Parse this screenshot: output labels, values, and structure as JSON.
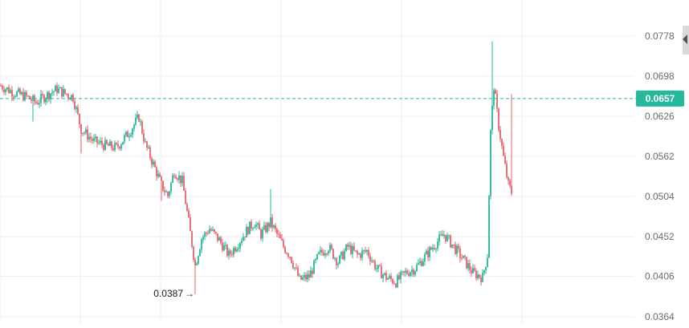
{
  "chart_data": {
    "type": "candlestick",
    "y_ticks": [
      "0.0778",
      "0.0698",
      "0.0626",
      "0.0562",
      "0.0504",
      "0.0452",
      "0.0406",
      "0.0364"
    ],
    "y_scale": "log",
    "grid": true,
    "current_price": "0.0657",
    "current_price_value": 0.0657,
    "min_label": "0.0387",
    "min_value": 0.0387,
    "colors": {
      "up": "#26b89a",
      "down": "#e4636b",
      "badge": "#26b89a",
      "grid": "#efefef"
    },
    "series_points": [
      {
        "i": 0,
        "v": 0.068
      },
      {
        "i": 8,
        "v": 0.0668
      },
      {
        "i": 16,
        "v": 0.066
      },
      {
        "i": 22,
        "v": 0.065
      },
      {
        "i": 28,
        "v": 0.0662
      },
      {
        "i": 35,
        "v": 0.0674
      },
      {
        "i": 40,
        "v": 0.0666
      },
      {
        "i": 45,
        "v": 0.066
      },
      {
        "i": 50,
        "v": 0.0605
      },
      {
        "i": 58,
        "v": 0.0585
      },
      {
        "i": 66,
        "v": 0.0578
      },
      {
        "i": 72,
        "v": 0.0575
      },
      {
        "i": 80,
        "v": 0.06
      },
      {
        "i": 86,
        "v": 0.0625
      },
      {
        "i": 90,
        "v": 0.058
      },
      {
        "i": 95,
        "v": 0.055
      },
      {
        "i": 100,
        "v": 0.052
      },
      {
        "i": 104,
        "v": 0.0505
      },
      {
        "i": 108,
        "v": 0.054
      },
      {
        "i": 113,
        "v": 0.0525
      },
      {
        "i": 117,
        "v": 0.047
      },
      {
        "i": 121,
        "v": 0.0418
      },
      {
        "i": 125,
        "v": 0.045
      },
      {
        "i": 130,
        "v": 0.0462
      },
      {
        "i": 136,
        "v": 0.0448
      },
      {
        "i": 142,
        "v": 0.043
      },
      {
        "i": 148,
        "v": 0.0445
      },
      {
        "i": 154,
        "v": 0.0462
      },
      {
        "i": 158,
        "v": 0.047
      },
      {
        "i": 162,
        "v": 0.0455
      },
      {
        "i": 168,
        "v": 0.047
      },
      {
        "i": 172,
        "v": 0.0455
      },
      {
        "i": 176,
        "v": 0.044
      },
      {
        "i": 180,
        "v": 0.043
      },
      {
        "i": 186,
        "v": 0.0402
      },
      {
        "i": 192,
        "v": 0.0406
      },
      {
        "i": 198,
        "v": 0.043
      },
      {
        "i": 204,
        "v": 0.044
      },
      {
        "i": 210,
        "v": 0.0422
      },
      {
        "i": 216,
        "v": 0.044
      },
      {
        "i": 222,
        "v": 0.043
      },
      {
        "i": 228,
        "v": 0.0435
      },
      {
        "i": 234,
        "v": 0.0415
      },
      {
        "i": 240,
        "v": 0.0405
      },
      {
        "i": 246,
        "v": 0.04
      },
      {
        "i": 252,
        "v": 0.041
      },
      {
        "i": 258,
        "v": 0.0415
      },
      {
        "i": 264,
        "v": 0.0428
      },
      {
        "i": 270,
        "v": 0.0442
      },
      {
        "i": 276,
        "v": 0.0455
      },
      {
        "i": 282,
        "v": 0.044
      },
      {
        "i": 288,
        "v": 0.0425
      },
      {
        "i": 294,
        "v": 0.041
      },
      {
        "i": 300,
        "v": 0.0405
      },
      {
        "i": 303,
        "v": 0.043
      },
      {
        "i": 305,
        "v": 0.06
      },
      {
        "i": 307,
        "v": 0.068
      },
      {
        "i": 310,
        "v": 0.061
      },
      {
        "i": 313,
        "v": 0.056
      },
      {
        "i": 316,
        "v": 0.052
      },
      {
        "i": 318,
        "v": 0.051
      }
    ],
    "spikes": [
      {
        "i": 306,
        "high": 0.0767
      },
      {
        "i": 318,
        "high": 0.0665
      }
    ]
  }
}
